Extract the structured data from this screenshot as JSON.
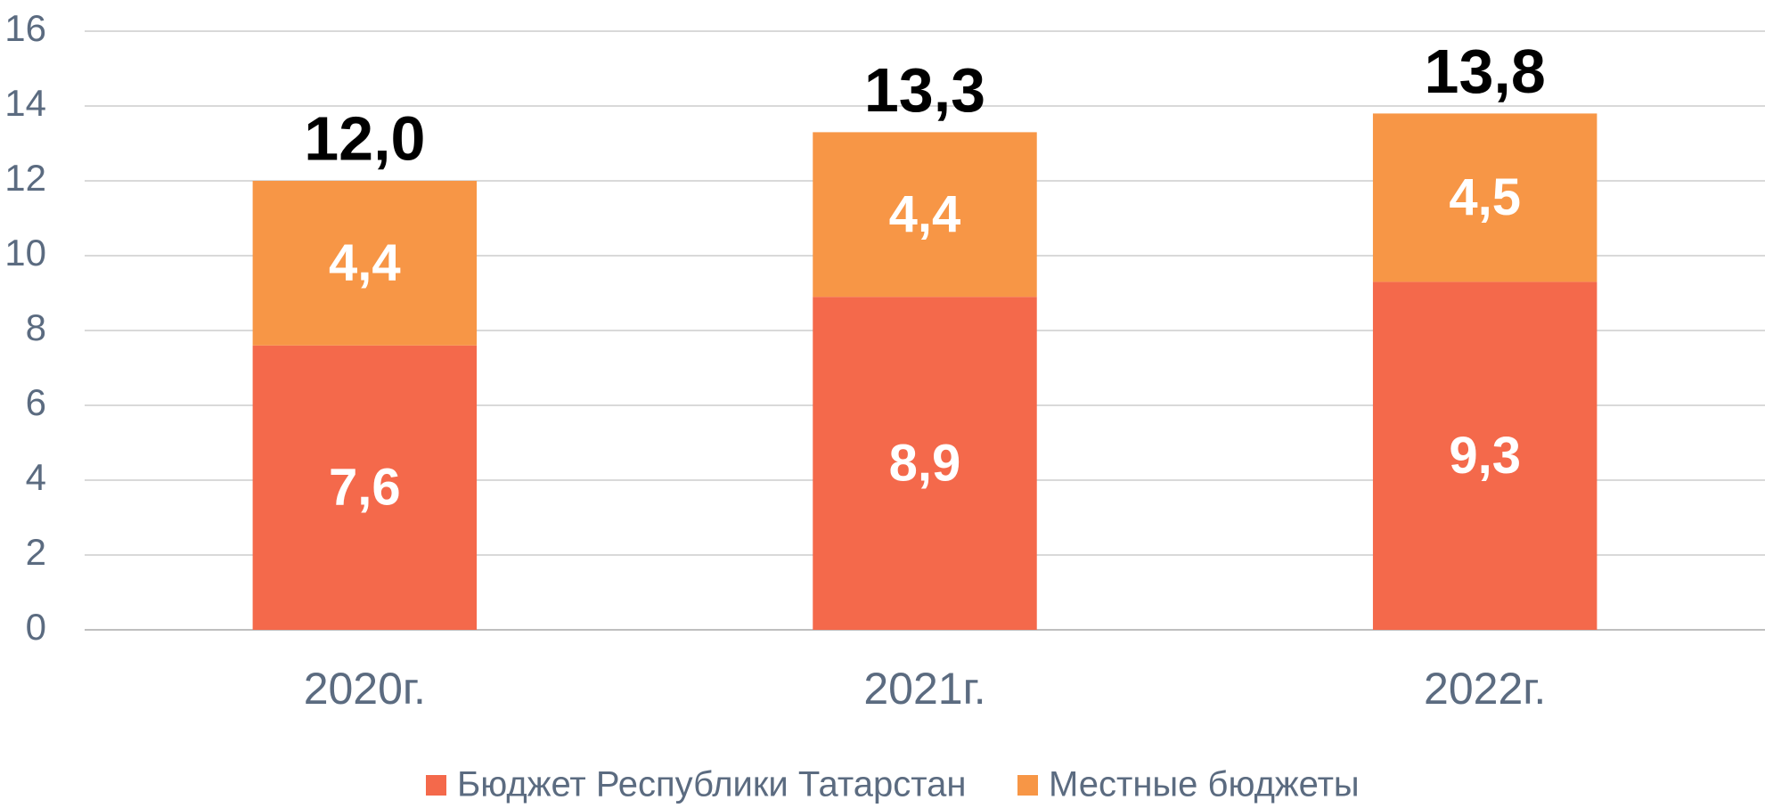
{
  "chart_data": {
    "type": "stacked_bar",
    "categories": [
      "2020г.",
      "2021г.",
      "2022г."
    ],
    "series": [
      {
        "name": "Бюджет Республики Татарстан",
        "color": "#f4694b",
        "values": [
          7.6,
          8.9,
          9.3
        ],
        "value_labels": [
          "7,6",
          "8,9",
          "9,3"
        ]
      },
      {
        "name": "Местные бюджеты",
        "color": "#f79646",
        "values": [
          4.4,
          4.4,
          4.5
        ],
        "value_labels": [
          "4,4",
          "4,4",
          "4,5"
        ]
      }
    ],
    "totals": [
      12.0,
      13.3,
      13.8
    ],
    "total_labels": [
      "12,0",
      "13,3",
      "13,8"
    ],
    "ylim": [
      0,
      16
    ],
    "yticks": [
      0,
      2,
      4,
      6,
      8,
      10,
      12,
      14,
      16
    ],
    "grid": true,
    "legend": "bottom"
  }
}
